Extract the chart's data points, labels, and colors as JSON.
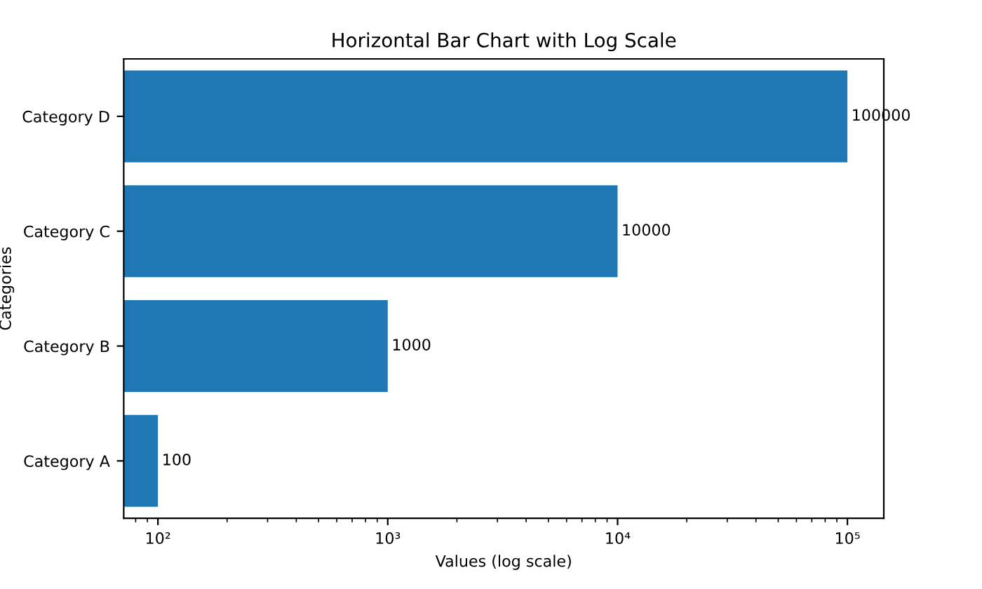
{
  "chart_data": {
    "type": "bar",
    "orientation": "horizontal",
    "title": "Horizontal Bar Chart with Log Scale",
    "xlabel": "Values (log scale)",
    "ylabel": "Categories",
    "categories": [
      "Category D",
      "Category C",
      "Category B",
      "Category A"
    ],
    "values": [
      100000,
      10000,
      1000,
      100
    ],
    "color": "#1f77b4",
    "log": "x",
    "xlim": [
      71,
      144000
    ],
    "xticks": [
      {
        "value": 100,
        "label": "10²"
      },
      {
        "value": 1000,
        "label": "10³"
      },
      {
        "value": 10000,
        "label": "10⁴"
      },
      {
        "value": 100000,
        "label": "10⁵"
      }
    ],
    "data_labels": true,
    "grid": false,
    "legend": false
  }
}
